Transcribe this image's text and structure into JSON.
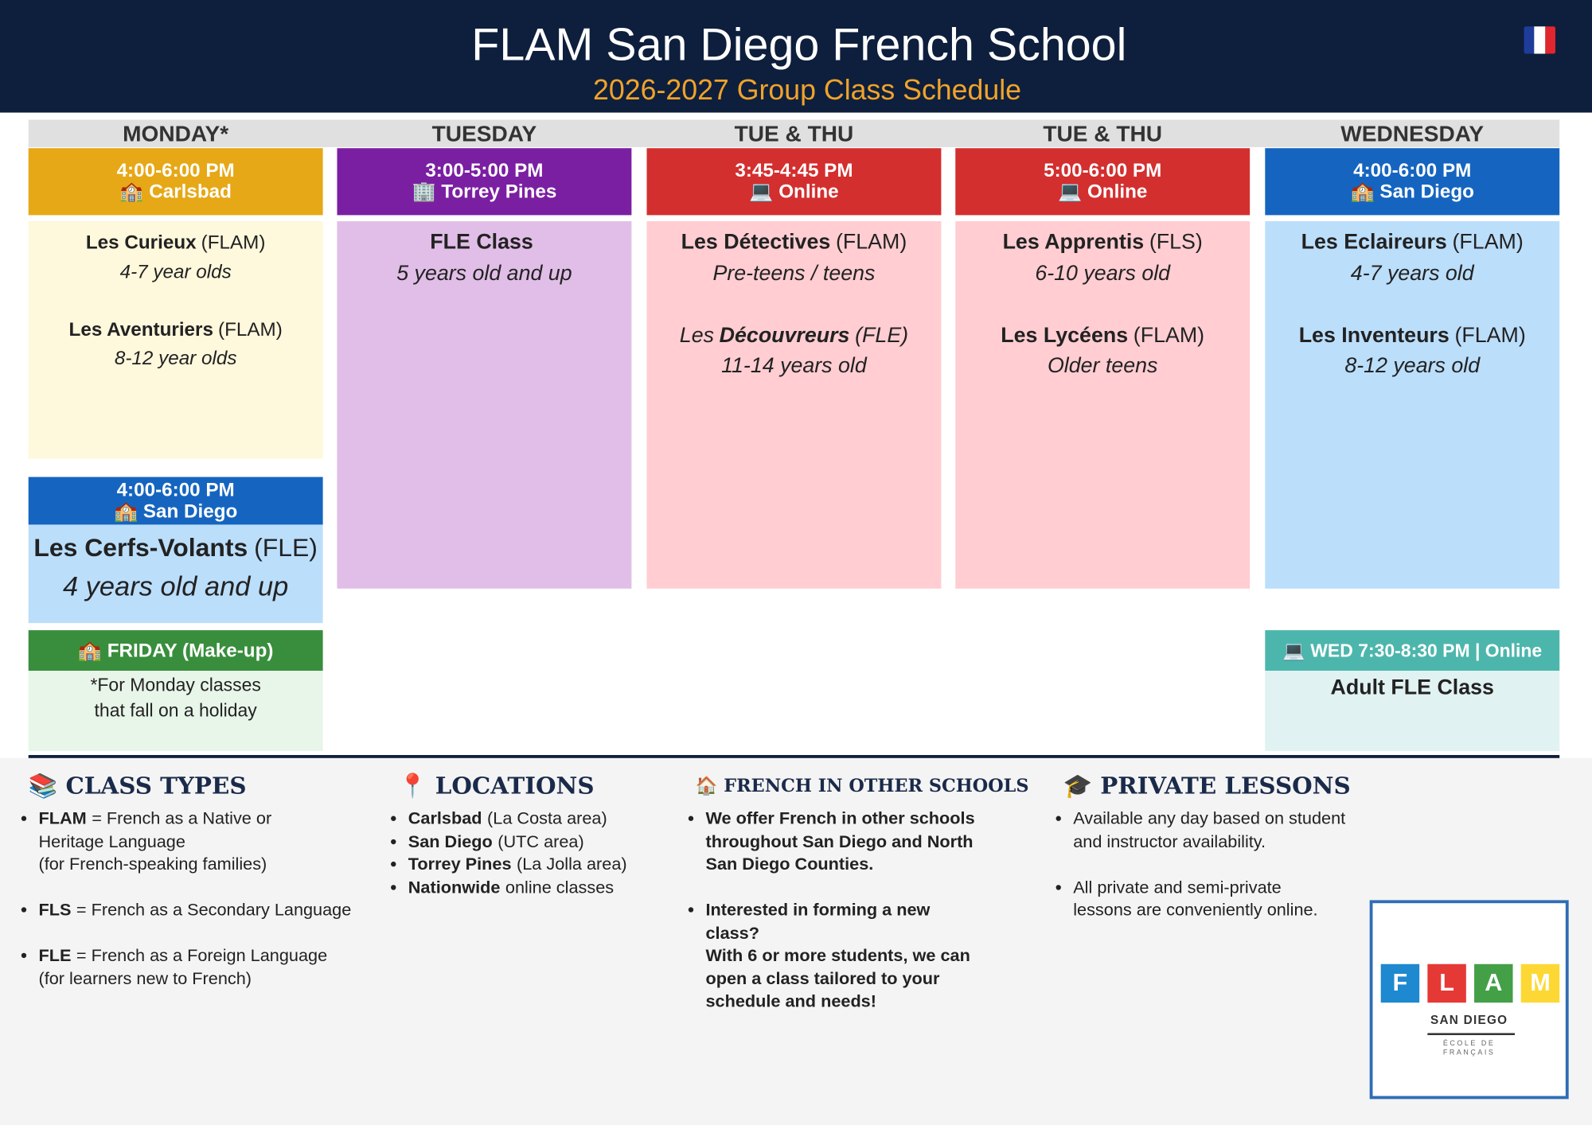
{
  "header": {
    "title": "FLAM San Diego French School",
    "subtitle": "2026-2027 Group Class Schedule",
    "flag_colors": [
      "#1f3c9a",
      "#ffffff",
      "#e0262e"
    ]
  },
  "schedule": {
    "columns": [
      {
        "day": "MONDAY*",
        "blocks": [
          {
            "time": "4:00-6:00 PM",
            "location": "🏫 Carlsbad",
            "header_color": "#e6a817",
            "body_color": "#fef8dc",
            "classes": [
              {
                "name": "Les Curieux",
                "type": "(FLAM)",
                "ages": "4-7 year olds"
              },
              {
                "name": "Les Aventuriers",
                "type": "(FLAM)",
                "ages": "8-12 year olds"
              }
            ]
          },
          {
            "time": "4:00-6:00 PM",
            "location": "🏫 San Diego",
            "header_color": "#1565c0",
            "body_color": "#bbdefb",
            "classes": [
              {
                "name": "Les Cerfs-Volants",
                "type": "(FLE)",
                "ages": "4 years old and up"
              }
            ]
          }
        ]
      },
      {
        "day": "TUESDAY",
        "blocks": [
          {
            "time": "3:00-5:00 PM",
            "location": "🏢 Torrey Pines",
            "header_color": "#7b1fa2",
            "body_color": "#e1bee7",
            "classes": [
              {
                "name": "FLE Class",
                "ages": "5 years old and up"
              }
            ]
          }
        ]
      },
      {
        "day": "TUE & THU",
        "blocks": [
          {
            "time": "3:45-4:45 PM",
            "location": "💻 Online",
            "header_color": "#d32f2f",
            "body_color": "#ffcdd2",
            "classes": [
              {
                "name": "Les Détectives",
                "type": "(FLAM)",
                "ages": "Pre-teens / teens"
              },
              {
                "prefix": "Les",
                "name": "Découvreurs",
                "type": "(FLE)",
                "ages": "11-14 years old",
                "italic": true
              }
            ]
          }
        ]
      },
      {
        "day": "TUE & THU",
        "blocks": [
          {
            "time": "5:00-6:00 PM",
            "location": "💻 Online",
            "header_color": "#d32f2f",
            "body_color": "#ffcdd2",
            "classes": [
              {
                "name": "Les Apprentis",
                "type": "(FLS)",
                "ages": "6-10 years old"
              },
              {
                "name": "Les Lycéens",
                "type": "(FLAM)",
                "ages": "Older teens"
              }
            ]
          }
        ]
      },
      {
        "day": "WEDNESDAY",
        "blocks": [
          {
            "time": "4:00-6:00 PM",
            "location": "🏫 San Diego",
            "header_color": "#1565c0",
            "body_color": "#bbdefb",
            "classes": [
              {
                "name": "Les Eclaireurs",
                "type": "(FLAM)",
                "ages": "4-7 years old"
              },
              {
                "name": "Les Inventeurs",
                "type": "(FLAM)",
                "ages": "8-12 years old"
              }
            ]
          }
        ]
      }
    ],
    "friday": {
      "heading": "🏫 FRIDAY (Make-up)",
      "note": "*For Monday classes\nthat fall on a holiday",
      "header_color": "#388e3c",
      "body_color": "#e8f5e9"
    },
    "adult": {
      "heading": "💻 WED 7:30-8:30 PM | Online",
      "class": "Adult FLE Class",
      "header_color": "#4db6ac",
      "body_color": "#e0f2f1"
    }
  },
  "info": {
    "sections": [
      {
        "heading": "📚 CLASS TYPES",
        "items": [
          {
            "bold": "FLAM",
            "text": "= French as a Native or\nHeritage Language\n(for French-speaking families)"
          },
          {
            "bold": "FLS",
            "text": "= French as a Secondary Language"
          },
          {
            "bold": "FLE",
            "text": "= French as a Foreign Language\n(for learners new to French)"
          }
        ]
      },
      {
        "heading": "📍 LOCATIONS",
        "items": [
          {
            "bold": "Carlsbad",
            "text": "(La Costa area)"
          },
          {
            "bold": "San Diego",
            "text": "(UTC area)"
          },
          {
            "bold": "Torrey Pines",
            "text": "(La Jolla area)"
          },
          {
            "bold": "Nationwide",
            "text": "online classes"
          }
        ]
      },
      {
        "heading": "🏠 FRENCH IN OTHER SCHOOLS",
        "items": [
          {
            "bold": "We offer French in other schools\nthroughout San Diego and North\nSan Diego Counties."
          },
          {
            "bold": "Interested in forming a new\nclass?\nWith 6 or more students, we can\nopen a class tailored to your\nschedule and needs!"
          }
        ]
      },
      {
        "heading": "🎓 PRIVATE LESSONS",
        "items": [
          {
            "text": "Available any day based on student\nand instructor availability."
          },
          {
            "text": "All private and semi-private\nlessons are conveniently online."
          }
        ]
      }
    ]
  },
  "logo": {
    "letters": [
      "F",
      "L",
      "A",
      "M"
    ],
    "letter_colors": [
      "#1e88d0",
      "#e53935",
      "#43a047",
      "#fdd835"
    ],
    "name": "SAN DIEGO",
    "tagline": "ÉCOLE DE\nFRANÇAIS"
  }
}
